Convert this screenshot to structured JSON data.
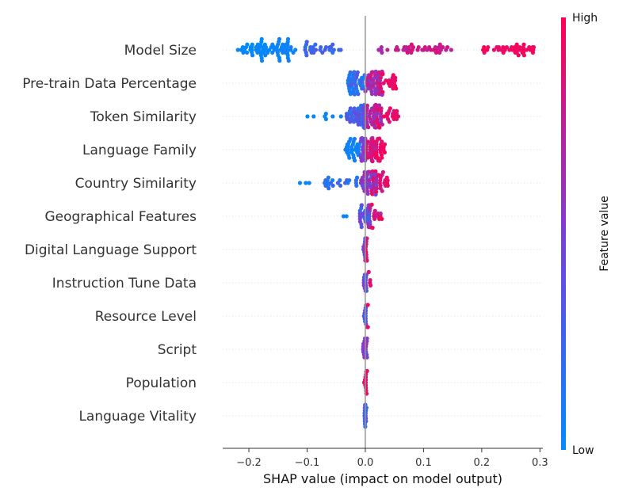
{
  "chart_data": {
    "type": "scatter",
    "subtype": "shap-beeswarm",
    "title": "",
    "xlabel": "SHAP value (impact on model output)",
    "ylabel": "",
    "xlim": [
      -0.245,
      0.305
    ],
    "xticks": [
      -0.2,
      -0.1,
      0.0,
      0.1,
      0.2,
      0.3
    ],
    "xtick_labels": [
      "−0.2",
      "−0.1",
      "0.0",
      "0.1",
      "0.2",
      "0.3"
    ],
    "grid": false,
    "zero_line": true,
    "colorbar": {
      "label": "Feature value",
      "high_label": "High",
      "low_label": "Low",
      "low_color": "#008bfb",
      "high_color": "#ff0052"
    },
    "features": [
      {
        "name": "Model Size",
        "groups": [
          {
            "x": [
              -0.22,
              -0.16
            ],
            "n": 38,
            "fv": [
              0.0,
              0.05
            ]
          },
          {
            "x": [
              -0.16,
              -0.12
            ],
            "n": 34,
            "fv": [
              0.02,
              0.08
            ]
          },
          {
            "x": [
              -0.11,
              -0.04
            ],
            "n": 28,
            "fv": [
              0.18,
              0.32
            ]
          },
          {
            "x": [
              0.01,
              0.04
            ],
            "n": 5,
            "fv": [
              0.62,
              0.74
            ]
          },
          {
            "x": [
              0.05,
              0.15
            ],
            "n": 34,
            "fv": [
              0.72,
              0.86
            ]
          },
          {
            "x": [
              0.2,
              0.29
            ],
            "n": 40,
            "fv": [
              0.9,
              1.0
            ]
          }
        ]
      },
      {
        "name": "Pre-train Data Percentage",
        "groups": [
          {
            "x": [
              -0.03,
              0.0
            ],
            "n": 40,
            "fv": [
              0.05,
              0.35
            ]
          },
          {
            "x": [
              0.0,
              0.03
            ],
            "n": 45,
            "fv": [
              0.55,
              0.85
            ]
          },
          {
            "x": [
              0.02,
              0.055
            ],
            "n": 25,
            "fv": [
              0.85,
              1.0
            ]
          }
        ]
      },
      {
        "name": "Token Similarity",
        "groups": [
          {
            "x": [
              -0.1,
              -0.035
            ],
            "n": 7,
            "fv": [
              0.0,
              0.06
            ]
          },
          {
            "x": [
              -0.035,
              0.0
            ],
            "n": 45,
            "fv": [
              0.15,
              0.45
            ]
          },
          {
            "x": [
              0.0,
              0.03
            ],
            "n": 40,
            "fv": [
              0.55,
              0.85
            ]
          },
          {
            "x": [
              0.02,
              0.06
            ],
            "n": 25,
            "fv": [
              0.85,
              1.0
            ]
          }
        ]
      },
      {
        "name": "Language Family",
        "groups": [
          {
            "x": [
              -0.035,
              -0.01
            ],
            "n": 30,
            "fv": [
              0.02,
              0.1
            ]
          },
          {
            "x": [
              -0.008,
              0.0
            ],
            "n": 18,
            "fv": [
              0.4,
              0.6
            ]
          },
          {
            "x": [
              0.0,
              0.02
            ],
            "n": 30,
            "fv": [
              0.75,
              0.9
            ]
          },
          {
            "x": [
              0.015,
              0.035
            ],
            "n": 20,
            "fv": [
              0.88,
              1.0
            ]
          }
        ]
      },
      {
        "name": "Country Similarity",
        "groups": [
          {
            "x": [
              -0.12,
              -0.09
            ],
            "n": 3,
            "fv": [
              0.0,
              0.06
            ]
          },
          {
            "x": [
              -0.07,
              -0.01
            ],
            "n": 22,
            "fv": [
              0.05,
              0.3
            ]
          },
          {
            "x": [
              -0.01,
              0.02
            ],
            "n": 40,
            "fv": [
              0.4,
              0.75
            ]
          },
          {
            "x": [
              0.01,
              0.04
            ],
            "n": 28,
            "fv": [
              0.8,
              1.0
            ]
          }
        ]
      },
      {
        "name": "Geographical Features",
        "groups": [
          {
            "x": [
              -0.05,
              -0.03
            ],
            "n": 2,
            "fv": [
              0.0,
              0.1
            ]
          },
          {
            "x": [
              -0.01,
              0.01
            ],
            "n": 30,
            "fv": [
              0.2,
              0.55
            ]
          },
          {
            "x": [
              0.005,
              0.03
            ],
            "n": 18,
            "fv": [
              0.7,
              1.0
            ]
          }
        ]
      },
      {
        "name": "Digital Language Support",
        "groups": [
          {
            "x": [
              -0.004,
              0.0
            ],
            "n": 10,
            "fv": [
              0.25,
              0.5
            ]
          },
          {
            "x": [
              0.0,
              0.004
            ],
            "n": 12,
            "fv": [
              0.8,
              1.0
            ]
          }
        ]
      },
      {
        "name": "Instruction Tune Data",
        "groups": [
          {
            "x": [
              -0.003,
              0.002
            ],
            "n": 14,
            "fv": [
              0.3,
              0.6
            ]
          },
          {
            "x": [
              0.002,
              0.01
            ],
            "n": 4,
            "fv": [
              0.85,
              1.0
            ]
          }
        ]
      },
      {
        "name": "Resource Level",
        "groups": [
          {
            "x": [
              -0.003,
              0.002
            ],
            "n": 14,
            "fv": [
              0.1,
              0.5
            ]
          },
          {
            "x": [
              0.002,
              0.005
            ],
            "n": 3,
            "fv": [
              0.85,
              1.0
            ]
          }
        ]
      },
      {
        "name": "Script",
        "groups": [
          {
            "x": [
              -0.004,
              0.003
            ],
            "n": 16,
            "fv": [
              0.4,
              0.7
            ]
          }
        ]
      },
      {
        "name": "Population",
        "groups": [
          {
            "x": [
              -0.002,
              0.003
            ],
            "n": 16,
            "fv": [
              0.85,
              1.0
            ]
          }
        ]
      },
      {
        "name": "Language Vitality",
        "groups": [
          {
            "x": [
              -0.002,
              0.002
            ],
            "n": 16,
            "fv": [
              0.15,
              0.5
            ]
          }
        ]
      }
    ]
  }
}
